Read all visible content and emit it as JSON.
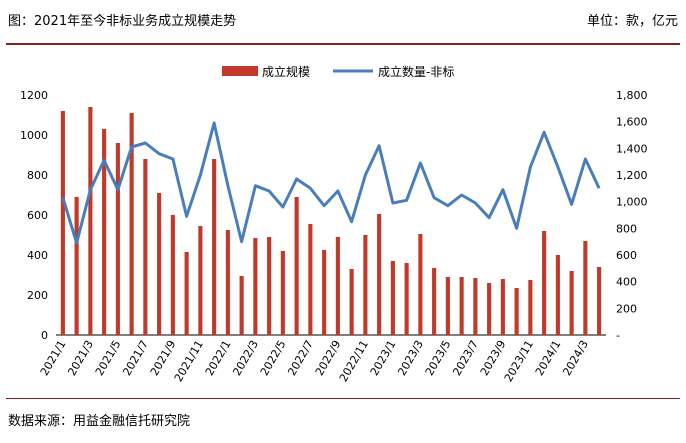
{
  "header": {
    "title": "图：2021年至今非标业务成立规模走势",
    "unit": "单位：款，亿元"
  },
  "footer": {
    "source": "数据来源：用益金融信托研究院"
  },
  "chart_data": {
    "type": "bar+line",
    "categories": [
      "2021/1",
      "2021/2",
      "2021/3",
      "2021/4",
      "2021/5",
      "2021/6",
      "2021/7",
      "2021/8",
      "2021/9",
      "2021/10",
      "2021/11",
      "2021/12",
      "2022/1",
      "2022/2",
      "2022/3",
      "2022/4",
      "2022/5",
      "2022/6",
      "2022/7",
      "2022/8",
      "2022/9",
      "2022/10",
      "2022/11",
      "2022/12",
      "2023/1",
      "2023/2",
      "2023/3",
      "2023/4",
      "2023/5",
      "2023/6",
      "2023/7",
      "2023/8",
      "2023/9",
      "2023/10",
      "2023/11",
      "2023/12",
      "2024/1",
      "2024/2",
      "2024/3",
      "2024/4"
    ],
    "x_tick_labels": [
      "2021/1",
      "2021/3",
      "2021/5",
      "2021/7",
      "2021/9",
      "2021/11",
      "2022/1",
      "2022/3",
      "2022/5",
      "2022/7",
      "2022/9",
      "2022/11",
      "2023/1",
      "2023/3",
      "2023/5",
      "2023/7",
      "2023/9",
      "2023/11",
      "2024/1",
      "2024/3"
    ],
    "series": [
      {
        "name": "成立规模",
        "type": "bar",
        "axis": "left",
        "color": "#c0392b",
        "values": [
          1120,
          690,
          1140,
          1030,
          960,
          1110,
          880,
          710,
          600,
          415,
          545,
          880,
          525,
          295,
          485,
          490,
          420,
          690,
          555,
          425,
          490,
          330,
          500,
          605,
          370,
          360,
          505,
          335,
          290,
          290,
          285,
          260,
          280,
          235,
          275,
          520,
          400,
          320,
          470,
          340
        ]
      },
      {
        "name": "成立数量-非标",
        "type": "line",
        "axis": "right",
        "color": "#4a7ebb",
        "values": [
          1030,
          690,
          1090,
          1310,
          1090,
          1410,
          1440,
          1360,
          1320,
          890,
          1200,
          1590,
          1120,
          700,
          1120,
          1080,
          960,
          1170,
          1100,
          970,
          1080,
          850,
          1200,
          1420,
          990,
          1010,
          1290,
          1030,
          970,
          1050,
          990,
          880,
          1090,
          800,
          1260,
          1520,
          1260,
          980,
          1320,
          1100
        ]
      }
    ],
    "y_left": {
      "min": 0,
      "max": 1200,
      "ticks": [
        "0",
        "200",
        "400",
        "600",
        "800",
        "1000",
        "1200"
      ]
    },
    "y_right": {
      "min": 0,
      "max": 1800,
      "ticks": [
        "-",
        "200",
        "400",
        "600",
        "800",
        "1,000",
        "1,200",
        "1,400",
        "1,600",
        "1,800"
      ]
    },
    "legend_position": "top-center"
  }
}
